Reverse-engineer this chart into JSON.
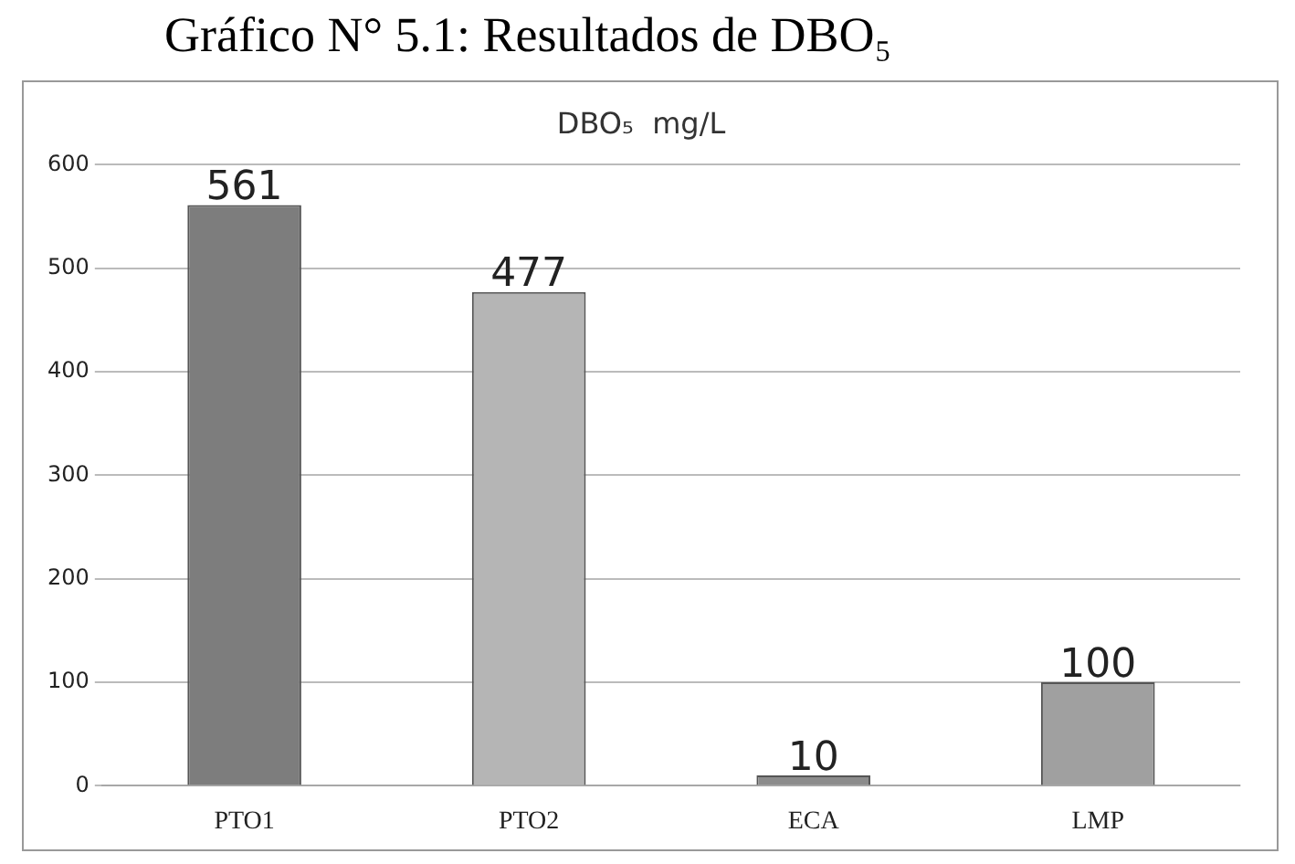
{
  "chart_data": {
    "type": "bar",
    "title": "Gráfico N° 5.1: Resultados de DBO₅",
    "subtitle": "DBO₅  mg/L",
    "categories": [
      "PTO1",
      "PTO2",
      "ECA",
      "LMP"
    ],
    "values": [
      561,
      477,
      10,
      100
    ],
    "colors": [
      "#7d7d7d",
      "#b5b5b5",
      "#8c8c8c",
      "#a0a0a0"
    ],
    "ylim": [
      0,
      600
    ],
    "yticks": [
      0,
      100,
      200,
      300,
      400,
      500,
      600
    ],
    "grid": "y",
    "data_labels": true,
    "legend": false
  }
}
